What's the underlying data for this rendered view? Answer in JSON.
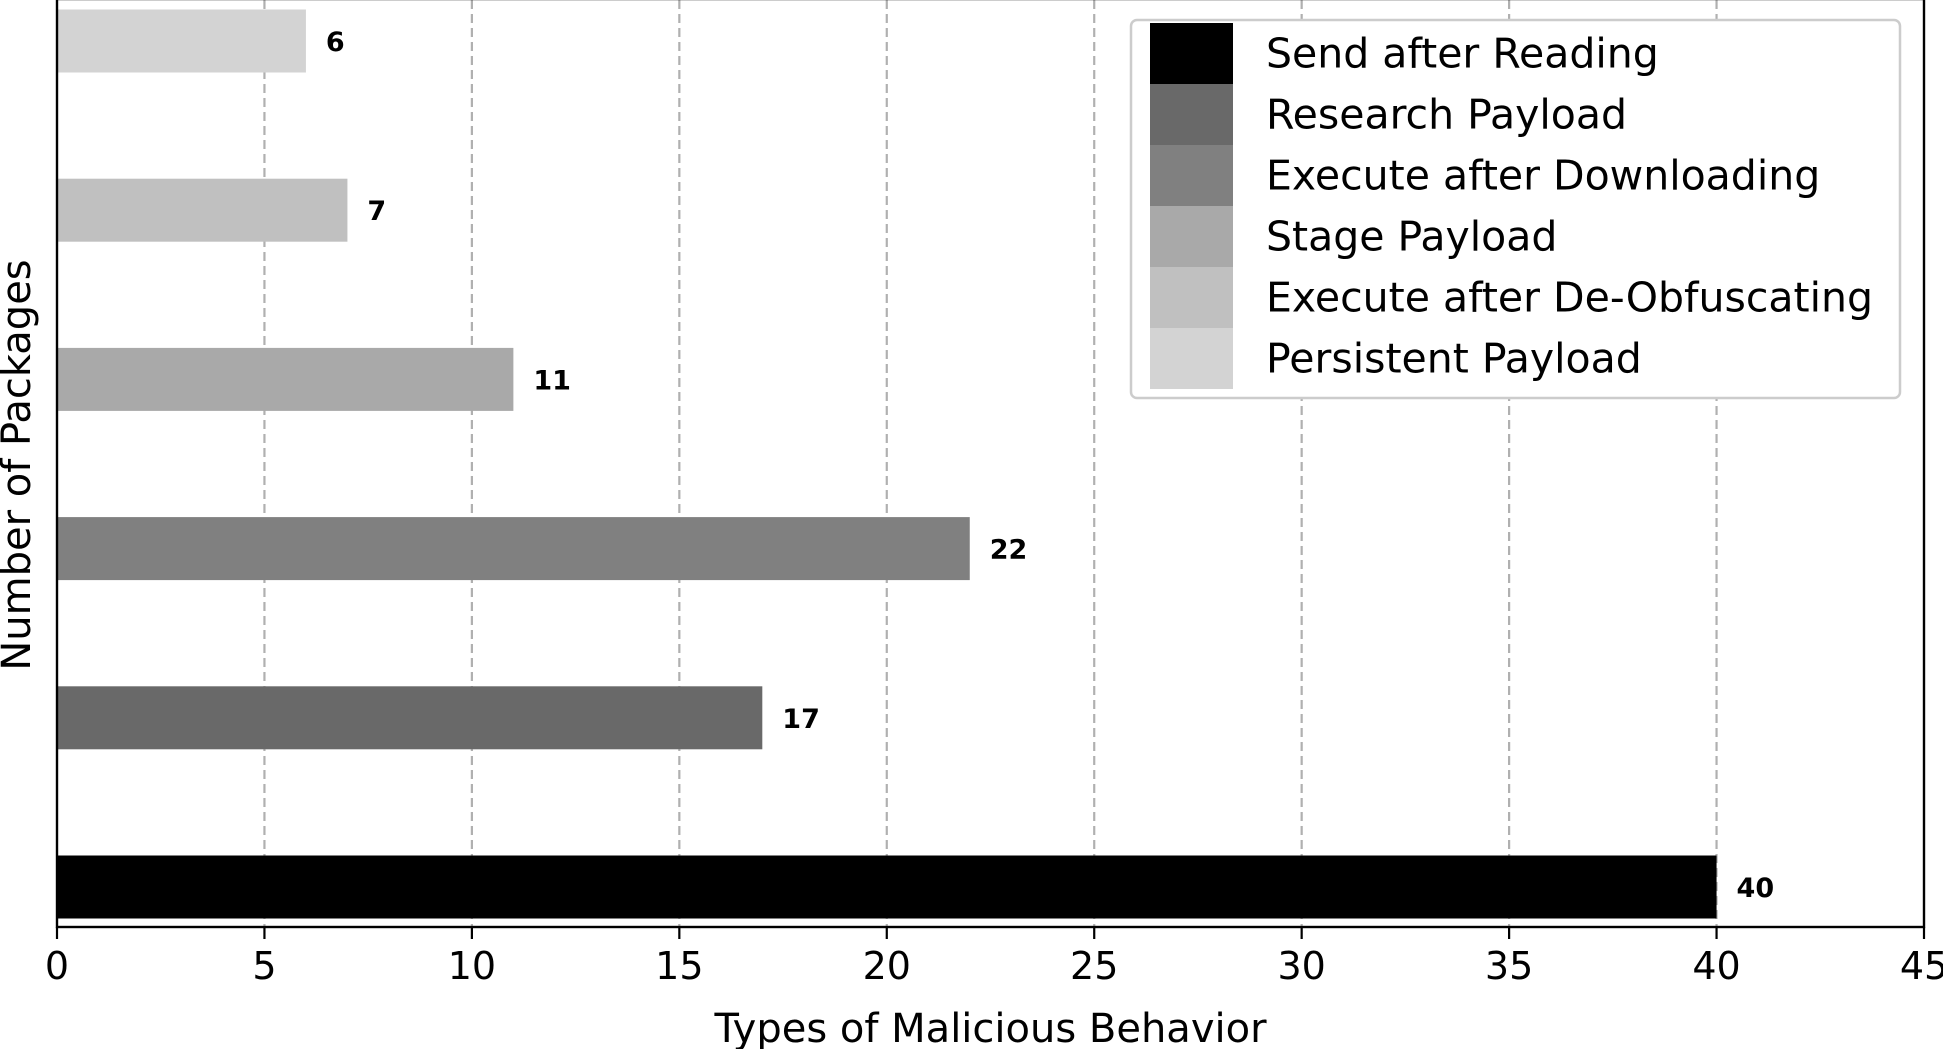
{
  "chart_data": {
    "type": "bar",
    "orientation": "horizontal",
    "title": "",
    "xlabel": "Types of Malicious Behavior",
    "ylabel": "Number of Packages",
    "xlim": [
      0,
      45
    ],
    "xticks": [
      0,
      5,
      10,
      15,
      20,
      25,
      30,
      35,
      40,
      45
    ],
    "grid": "x-axis, dashed",
    "legend_position": "top-right",
    "series": [
      {
        "name": "Send after Reading",
        "value": 40,
        "color": "#000000"
      },
      {
        "name": "Research Payload",
        "value": 17,
        "color": "#696969"
      },
      {
        "name": "Execute after Downloading",
        "value": 22,
        "color": "#808080"
      },
      {
        "name": "Stage Payload",
        "value": 11,
        "color": "#a9a9a9"
      },
      {
        "name": "Execute after De-Obfuscating",
        "value": 7,
        "color": "#c0c0c0"
      },
      {
        "name": "Persistent Payload",
        "value": 6,
        "color": "#d3d3d3"
      }
    ]
  }
}
